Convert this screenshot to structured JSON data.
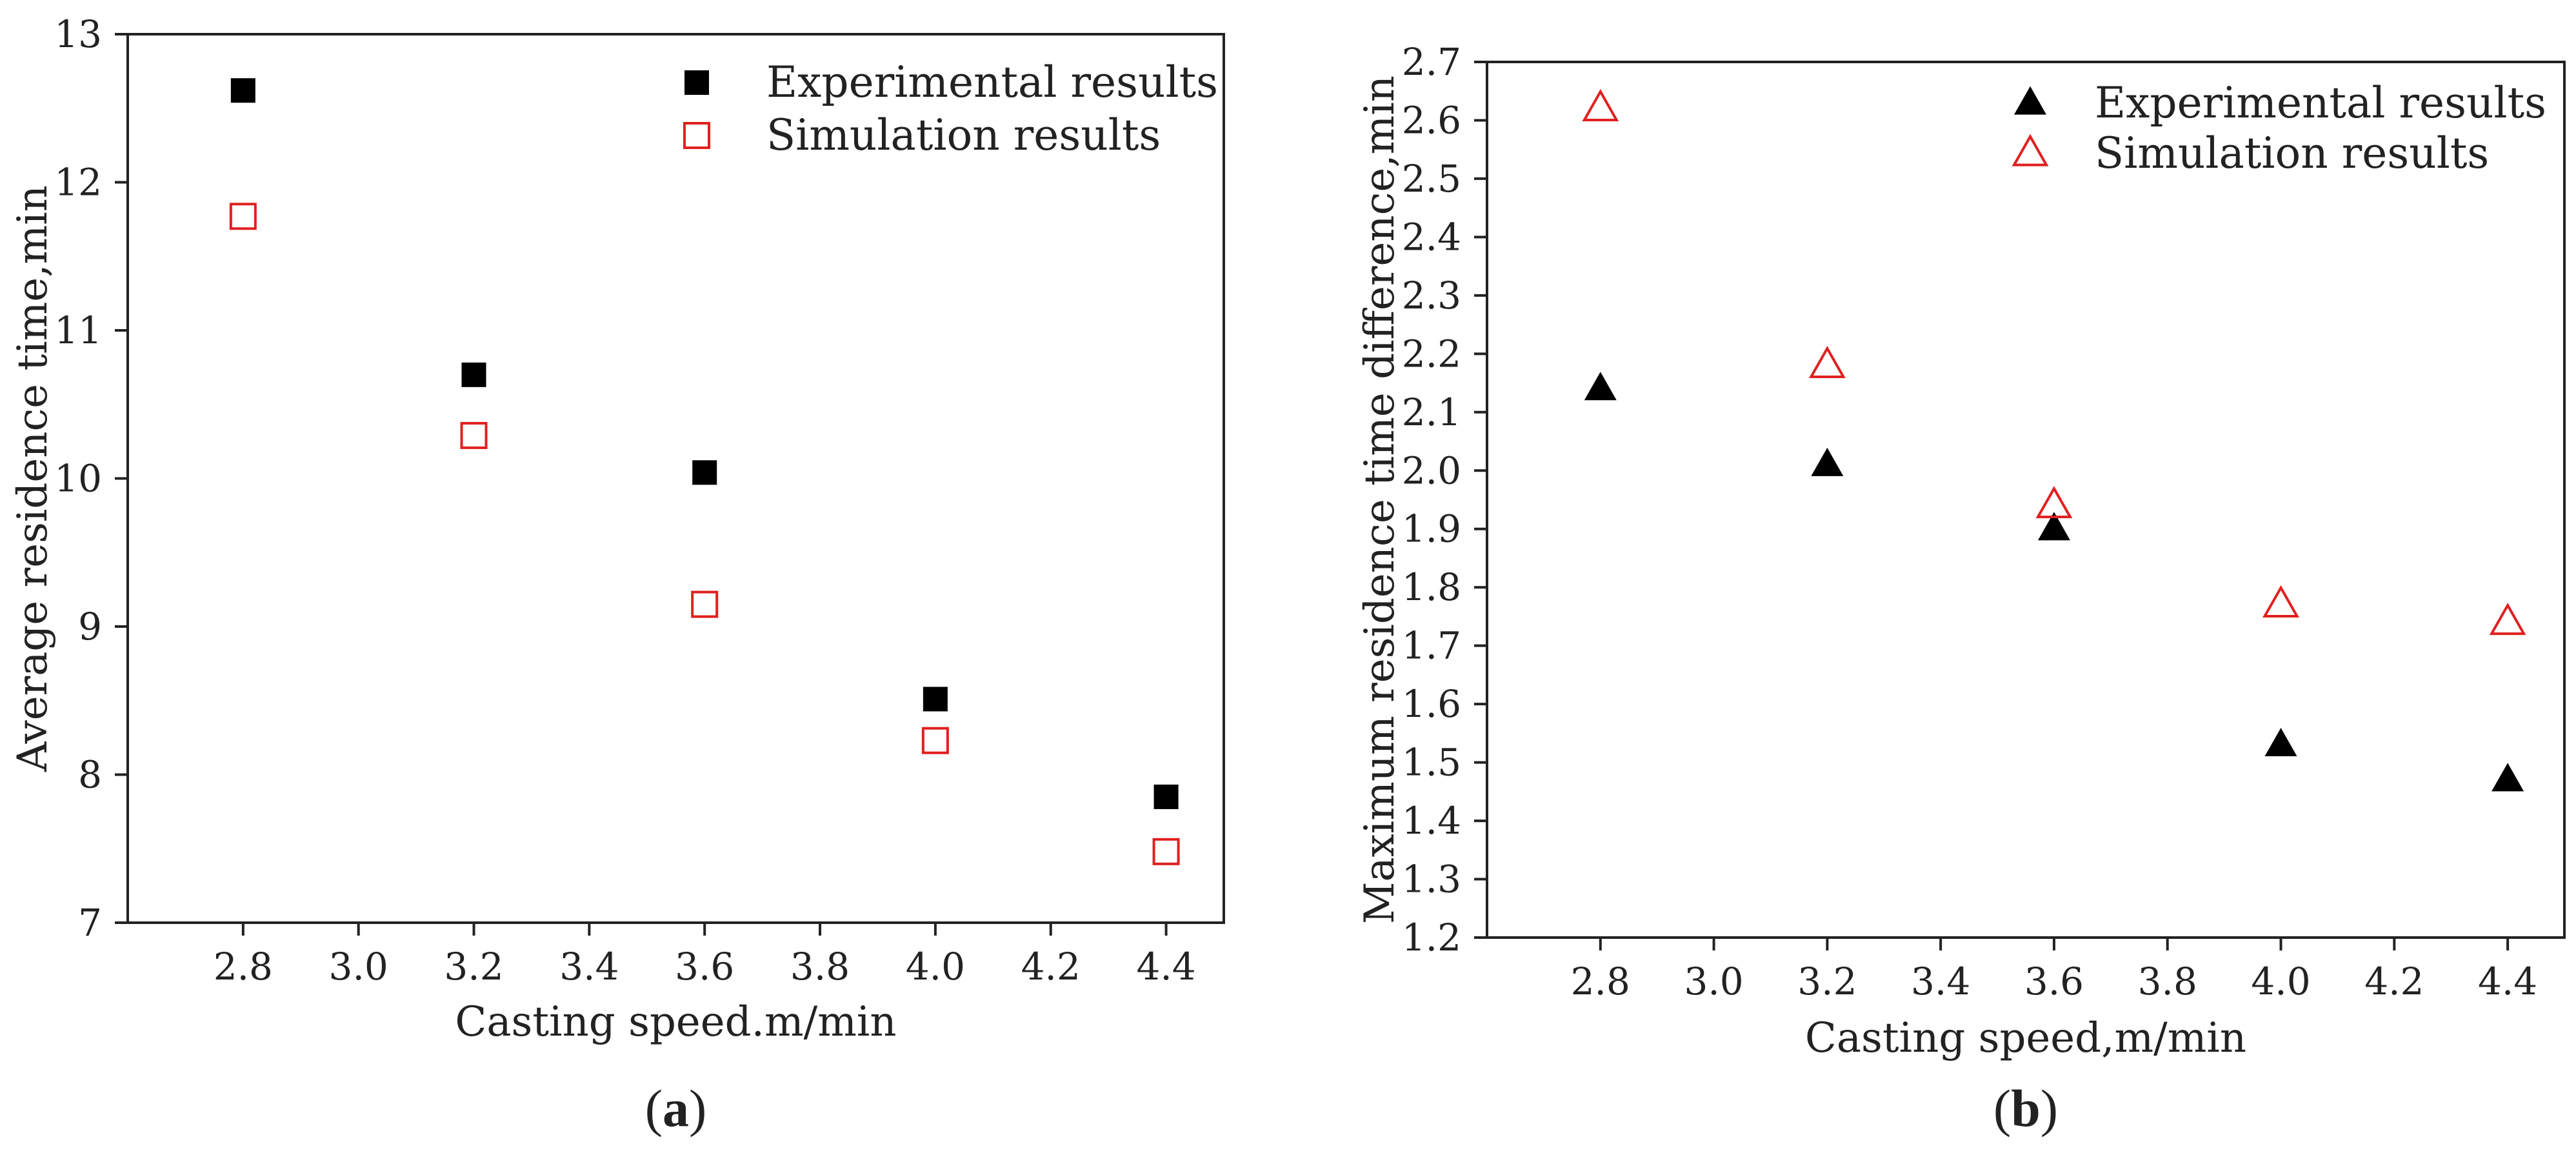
{
  "chart_data": [
    {
      "type": "scatter",
      "panel_label": "a",
      "xlabel": "Casting speed.m/min",
      "ylabel": "Average residence time,min",
      "xlim": [
        2.6,
        4.5
      ],
      "ylim": [
        7,
        13
      ],
      "xticks": [
        2.8,
        3.0,
        3.2,
        3.4,
        3.6,
        3.8,
        4.0,
        4.2,
        4.4
      ],
      "xtick_labels": [
        "2.8",
        "3.0",
        "3.2",
        "3.4",
        "3.6",
        "3.8",
        "4.0",
        "4.2",
        "4.4"
      ],
      "yticks": [
        7,
        8,
        9,
        10,
        11,
        12,
        13
      ],
      "ytick_labels": [
        "7",
        "8",
        "9",
        "10",
        "11",
        "12",
        "13"
      ],
      "legend_position": "top-right",
      "series": [
        {
          "name": "Experimental results",
          "marker": "square-filled",
          "color": "#000000",
          "x": [
            2.8,
            3.2,
            3.6,
            4.0,
            4.4
          ],
          "y": [
            12.62,
            10.7,
            10.04,
            8.51,
            7.85
          ]
        },
        {
          "name": "Simulation results",
          "marker": "square-open",
          "color": "#e02020",
          "x": [
            2.8,
            3.2,
            3.6,
            4.0,
            4.4
          ],
          "y": [
            11.77,
            10.29,
            9.15,
            8.23,
            7.48
          ]
        }
      ]
    },
    {
      "type": "scatter",
      "panel_label": "b",
      "xlabel": "Casting speed,m/min",
      "ylabel": "Maximum residence time difference,min",
      "xlim": [
        2.6,
        4.5
      ],
      "ylim": [
        1.2,
        2.7
      ],
      "xticks": [
        2.8,
        3.0,
        3.2,
        3.4,
        3.6,
        3.8,
        4.0,
        4.2,
        4.4
      ],
      "xtick_labels": [
        "2.8",
        "3.0",
        "3.2",
        "3.4",
        "3.6",
        "3.8",
        "4.0",
        "4.2",
        "4.4"
      ],
      "yticks": [
        1.2,
        1.3,
        1.4,
        1.5,
        1.6,
        1.7,
        1.8,
        1.9,
        2.0,
        2.1,
        2.2,
        2.3,
        2.4,
        2.5,
        2.6,
        2.7
      ],
      "ytick_labels": [
        "1.2",
        "1.3",
        "1.4",
        "1.5",
        "1.6",
        "1.7",
        "1.8",
        "1.9",
        "2.0",
        "2.1",
        "2.2",
        "2.3",
        "2.4",
        "2.5",
        "2.6",
        "2.7"
      ],
      "legend_position": "top-right",
      "series": [
        {
          "name": "Experimental results",
          "marker": "triangle-filled",
          "color": "#000000",
          "x": [
            2.8,
            3.2,
            3.6,
            4.0,
            4.4
          ],
          "y": [
            2.14,
            2.01,
            1.9,
            1.53,
            1.47
          ]
        },
        {
          "name": "Simulation results",
          "marker": "triangle-open",
          "color": "#e02020",
          "x": [
            2.8,
            3.2,
            3.6,
            4.0,
            4.4
          ],
          "y": [
            2.62,
            2.18,
            1.94,
            1.77,
            1.74
          ]
        }
      ]
    }
  ]
}
